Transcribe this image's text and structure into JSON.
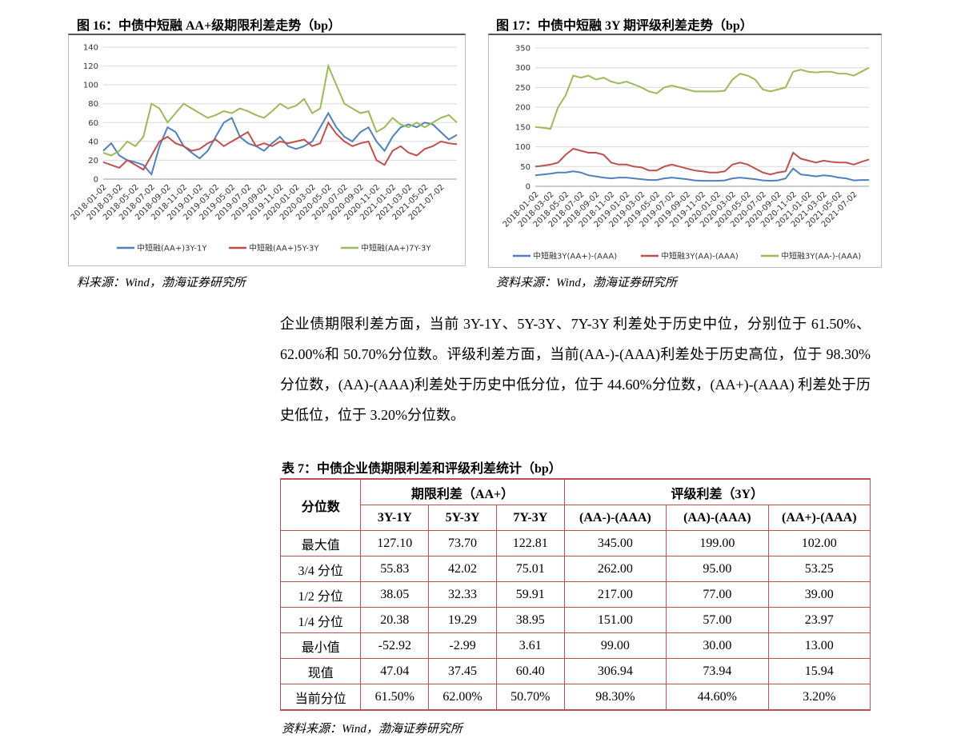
{
  "chart_data": [
    {
      "type": "line",
      "title": "图 16：中债中短融 AA+级期限利差走势（bp）",
      "source": "料来源：Wind，渤海证券研究所",
      "categories": [
        "2018-01-02",
        null,
        "2018-03-02",
        null,
        "2018-05-02",
        null,
        "2018-07-02",
        null,
        "2018-09-02",
        null,
        "2018-11-02",
        null,
        "2019-01-02",
        null,
        "2019-03-02",
        null,
        "2019-05-02",
        null,
        "2019-07-02",
        null,
        "2019-09-02",
        null,
        "2019-11-02",
        null,
        "2020-01-02",
        null,
        "2020-03-02",
        null,
        "2020-05-02",
        null,
        "2020-07-02",
        null,
        "2020-09-02",
        null,
        "2020-11-02",
        null,
        "2021-01-02",
        null,
        "2021-03-02",
        null,
        "2021-05-02",
        null,
        "2021-07-02",
        null,
        null
      ],
      "ylim": [
        0,
        140
      ],
      "yticks": [
        0,
        20,
        40,
        60,
        80,
        100,
        120,
        140
      ],
      "grid": true,
      "series": [
        {
          "name": "中短融(AA+)3Y-1Y",
          "color": "#4f81bd",
          "values": [
            30,
            38,
            25,
            20,
            18,
            15,
            5,
            35,
            55,
            50,
            35,
            28,
            22,
            30,
            45,
            60,
            65,
            45,
            38,
            35,
            30,
            38,
            45,
            35,
            32,
            35,
            40,
            55,
            70,
            55,
            45,
            40,
            50,
            55,
            40,
            30,
            45,
            55,
            58,
            55,
            60,
            58,
            50,
            42,
            47
          ]
        },
        {
          "name": "中短融(AA+)5Y-3Y",
          "color": "#c0504d",
          "values": [
            18,
            15,
            12,
            20,
            15,
            10,
            25,
            40,
            45,
            38,
            35,
            30,
            32,
            38,
            42,
            35,
            40,
            45,
            50,
            35,
            38,
            35,
            40,
            38,
            40,
            42,
            35,
            38,
            60,
            48,
            40,
            35,
            38,
            40,
            20,
            15,
            30,
            35,
            28,
            25,
            32,
            35,
            40,
            38,
            37
          ]
        },
        {
          "name": "中短融(AA+)7Y-3Y",
          "color": "#9bbb59",
          "values": [
            28,
            25,
            30,
            40,
            35,
            45,
            80,
            75,
            60,
            70,
            80,
            75,
            70,
            65,
            68,
            72,
            70,
            75,
            72,
            68,
            65,
            72,
            80,
            75,
            78,
            85,
            70,
            75,
            120,
            100,
            80,
            75,
            70,
            72,
            50,
            55,
            65,
            58,
            55,
            60,
            55,
            60,
            65,
            68,
            60
          ]
        }
      ]
    },
    {
      "type": "line",
      "title": "图 17：中债中短融 3Y 期评级利差走势（bp）",
      "source": "资料来源：Wind，渤海证券研究所",
      "categories": [
        "2018-01-02",
        null,
        "2018-03-02",
        null,
        "2018-05-02",
        null,
        "2018-07-02",
        null,
        "2018-09-02",
        null,
        "2018-11-02",
        null,
        "2019-01-02",
        null,
        "2019-03-02",
        null,
        "2019-05-02",
        null,
        "2019-07-02",
        null,
        "2019-09-02",
        null,
        "2019-11-02",
        null,
        "2020-01-02",
        null,
        "2020-03-02",
        null,
        "2020-05-02",
        null,
        "2020-07-02",
        null,
        "2020-09-02",
        null,
        "2020-11-02",
        null,
        "2021-01-02",
        null,
        "2021-03-02",
        null,
        "2021-05-02",
        null,
        "2021-07-02",
        null,
        null
      ],
      "ylim": [
        0,
        350
      ],
      "yticks": [
        0,
        50,
        100,
        150,
        200,
        250,
        300,
        350
      ],
      "grid": true,
      "series": [
        {
          "name": "中短融3Y(AA+)-(AAA)",
          "color": "#4f81bd",
          "values": [
            28,
            30,
            32,
            35,
            35,
            38,
            35,
            28,
            25,
            22,
            20,
            22,
            22,
            20,
            18,
            16,
            16,
            20,
            22,
            20,
            18,
            15,
            14,
            14,
            14,
            15,
            20,
            22,
            20,
            18,
            15,
            14,
            15,
            20,
            45,
            30,
            28,
            25,
            28,
            26,
            22,
            20,
            15,
            16,
            16
          ]
        },
        {
          "name": "中短融3Y(AA)-(AAA)",
          "color": "#c0504d",
          "values": [
            50,
            52,
            55,
            60,
            80,
            95,
            90,
            85,
            85,
            80,
            60,
            55,
            55,
            50,
            48,
            40,
            40,
            50,
            55,
            50,
            45,
            40,
            38,
            35,
            35,
            38,
            55,
            60,
            55,
            45,
            35,
            30,
            35,
            38,
            85,
            70,
            65,
            60,
            65,
            62,
            60,
            60,
            55,
            62,
            68
          ]
        },
        {
          "name": "中短融3Y(AA-)-(AAA)",
          "color": "#9bbb59",
          "values": [
            150,
            148,
            145,
            200,
            230,
            280,
            275,
            280,
            270,
            275,
            265,
            260,
            265,
            258,
            250,
            240,
            235,
            250,
            255,
            250,
            245,
            240,
            240,
            240,
            240,
            242,
            270,
            285,
            280,
            270,
            245,
            240,
            245,
            250,
            290,
            295,
            290,
            288,
            290,
            290,
            285,
            285,
            280,
            290,
            300
          ]
        }
      ]
    }
  ],
  "body": {
    "paragraph": "企业债期限利差方面，当前 3Y-1Y、5Y-3Y、7Y-3Y 利差处于历史中位，分别位于 61.50%、62.00%和 50.70%分位数。评级利差方面，当前(AA-)-(AAA)利差处于历史高位，位于 98.30%分位数，(AA)-(AAA)利差处于历史中低分位，位于 44.60%分位数，(AA+)-(AAA) 利差处于历史低位，位于 3.20%分位数。"
  },
  "table": {
    "title": "表 7：中债企业债期限利差和评级利差统计（bp）",
    "source": "资料来源：Wind，渤海证券研究所",
    "corner": "分位数",
    "groups": [
      "期限利差（AA+）",
      "评级利差（3Y）"
    ],
    "columns": [
      "3Y-1Y",
      "5Y-3Y",
      "7Y-3Y",
      "(AA-)-(AAA)",
      "(AA)-(AAA)",
      "(AA+)-(AAA)"
    ],
    "rows": [
      [
        "最大值",
        "127.10",
        "73.70",
        "122.81",
        "345.00",
        "199.00",
        "102.00"
      ],
      [
        "3/4 分位",
        "55.83",
        "42.02",
        "75.01",
        "262.00",
        "95.00",
        "53.25"
      ],
      [
        "1/2 分位",
        "38.05",
        "32.33",
        "59.91",
        "217.00",
        "77.00",
        "39.00"
      ],
      [
        "1/4 分位",
        "20.38",
        "19.29",
        "38.95",
        "151.00",
        "57.00",
        "23.97"
      ],
      [
        "最小值",
        "-52.92",
        "-2.99",
        "3.61",
        "99.00",
        "30.00",
        "13.00"
      ],
      [
        "现值",
        "47.04",
        "37.45",
        "60.40",
        "306.94",
        "73.94",
        "15.94"
      ],
      [
        "当前分位",
        "61.50%",
        "62.00%",
        "50.70%",
        "98.30%",
        "44.60%",
        "3.20%"
      ]
    ]
  }
}
